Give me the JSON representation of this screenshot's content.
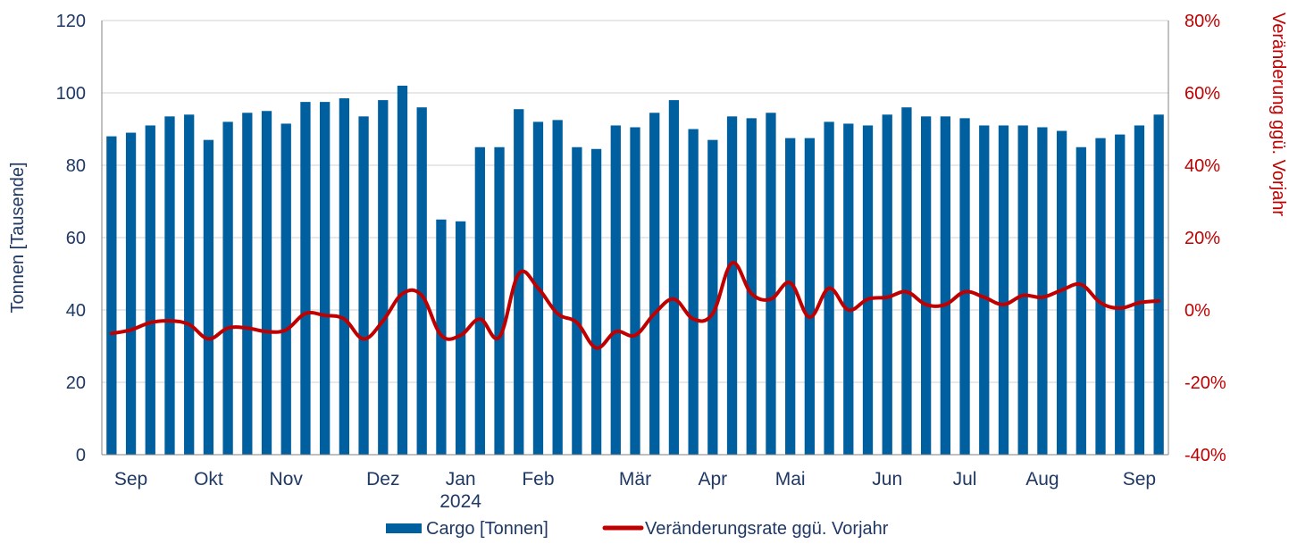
{
  "chart_data": {
    "type": "bar",
    "y_left": {
      "label": "Tonnen [Tausende]",
      "lim": [
        0,
        120
      ],
      "ticks": [
        0,
        20,
        40,
        60,
        80,
        100,
        120
      ]
    },
    "y_right": {
      "label": "Veränderung ggü. Vorjahr",
      "lim": [
        -40,
        80
      ],
      "ticks": [
        -40,
        -20,
        0,
        20,
        40,
        60,
        80
      ],
      "tick_labels": [
        "-40%",
        "-20%",
        "0%",
        "20%",
        "40%",
        "60%",
        "80%"
      ]
    },
    "x_month_labels": [
      {
        "label": "Sep",
        "index": 1
      },
      {
        "label": "Okt",
        "index": 5
      },
      {
        "label": "Nov",
        "index": 9
      },
      {
        "label": "Dez",
        "index": 14
      },
      {
        "label": "Jan",
        "index": 18
      },
      {
        "label": "2024",
        "index": 18
      },
      {
        "label": "Feb",
        "index": 22
      },
      {
        "label": "Mär",
        "index": 27
      },
      {
        "label": "Apr",
        "index": 31
      },
      {
        "label": "Mai",
        "index": 35
      },
      {
        "label": "Jun",
        "index": 40
      },
      {
        "label": "Jul",
        "index": 44
      },
      {
        "label": "Aug",
        "index": 48
      },
      {
        "label": "Sep",
        "index": 53
      }
    ],
    "grid": true,
    "legend_position": "bottom",
    "series": [
      {
        "name": "Cargo [Tonnen]",
        "type": "bar",
        "axis": "left",
        "color": "#005f9e",
        "values": [
          88,
          89,
          91,
          93.5,
          94,
          87,
          92,
          94.5,
          95,
          91.5,
          97.5,
          97.5,
          98.5,
          93.5,
          98,
          102,
          96,
          65,
          64.5,
          85,
          85,
          95.5,
          92,
          92.5,
          85,
          84.5,
          91,
          90.5,
          94.5,
          98,
          90,
          87,
          93.5,
          93,
          94.5,
          87.5,
          87.5,
          92,
          91.5,
          91,
          94,
          96,
          93.5,
          93.5,
          93,
          91,
          91,
          91,
          90.5,
          89.5,
          85,
          87.5,
          88.5,
          91,
          94
        ]
      },
      {
        "name": "Veränderungsrate ggü. Vorjahr",
        "type": "line",
        "axis": "right",
        "color": "#c00000",
        "values": [
          -6.5,
          -5.5,
          -3.5,
          -3,
          -4,
          -8,
          -5,
          -5,
          -6,
          -5.5,
          -1,
          -1.5,
          -2.5,
          -8,
          -3,
          4.5,
          4,
          -7,
          -7,
          -2.5,
          -7.5,
          10,
          6,
          -1,
          -3.5,
          -10.5,
          -6,
          -7,
          -1,
          3,
          -2.5,
          -1,
          13,
          4.5,
          3,
          7.5,
          -2,
          6,
          0,
          3,
          3.5,
          5,
          1.5,
          1.5,
          5,
          3.5,
          1.5,
          4,
          3.5,
          5.5,
          7,
          2,
          0.5,
          2,
          2.5
        ]
      }
    ]
  }
}
